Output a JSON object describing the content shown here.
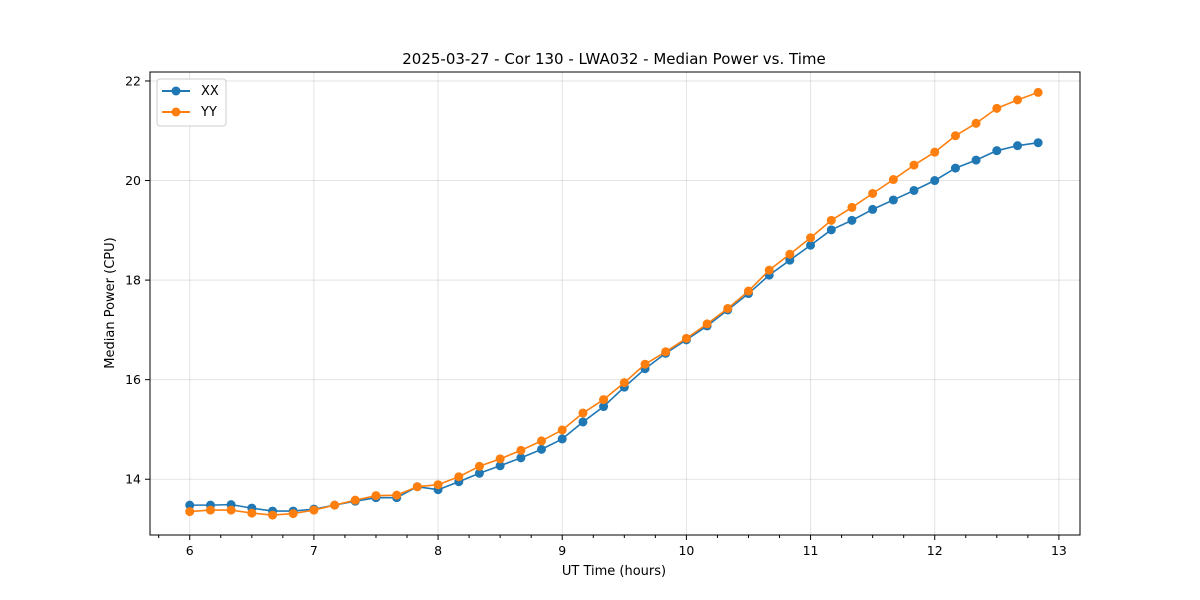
{
  "chart_data": {
    "type": "line",
    "title": "2025-03-27 - Cor 130 - LWA032 - Median Power vs. Time",
    "xlabel": "UT Time (hours)",
    "ylabel": "Median Power (CPU)",
    "xlim": [
      5.68,
      13.17
    ],
    "ylim": [
      12.88,
      22.18
    ],
    "xticks": [
      6,
      7,
      8,
      9,
      10,
      11,
      12,
      13
    ],
    "yticks": [
      14,
      16,
      18,
      20,
      22
    ],
    "grid": true,
    "legend_position": "top-left",
    "x": [
      6.0,
      6.167,
      6.333,
      6.5,
      6.667,
      6.833,
      7.0,
      7.167,
      7.333,
      7.5,
      7.667,
      7.833,
      8.0,
      8.167,
      8.333,
      8.5,
      8.667,
      8.833,
      9.0,
      9.167,
      9.333,
      9.5,
      9.667,
      9.833,
      10.0,
      10.167,
      10.333,
      10.5,
      10.667,
      10.833,
      11.0,
      11.167,
      11.333,
      11.5,
      11.667,
      11.833,
      12.0,
      12.167,
      12.333,
      12.5,
      12.667,
      12.833
    ],
    "series": [
      {
        "name": "XX",
        "color": "#1f77b4",
        "values": [
          13.48,
          13.48,
          13.49,
          13.42,
          13.36,
          13.36,
          13.4,
          13.48,
          13.56,
          13.63,
          13.63,
          13.85,
          13.79,
          13.95,
          14.12,
          14.27,
          14.43,
          14.6,
          14.81,
          15.15,
          15.46,
          15.85,
          16.22,
          16.53,
          16.8,
          17.08,
          17.4,
          17.73,
          18.1,
          18.4,
          18.7,
          19.01,
          19.2,
          19.42,
          19.61,
          19.8,
          20.0,
          20.25,
          20.41,
          20.6,
          20.7,
          20.76
        ]
      },
      {
        "name": "YY",
        "color": "#ff7f0e",
        "values": [
          13.35,
          13.38,
          13.38,
          13.32,
          13.28,
          13.31,
          13.38,
          13.48,
          13.58,
          13.67,
          13.68,
          13.85,
          13.89,
          14.05,
          14.26,
          14.41,
          14.58,
          14.77,
          14.99,
          15.33,
          15.6,
          15.94,
          16.31,
          16.56,
          16.83,
          17.12,
          17.43,
          17.78,
          18.2,
          18.52,
          18.85,
          19.2,
          19.46,
          19.74,
          20.02,
          20.31,
          20.57,
          20.9,
          21.15,
          21.45,
          21.62,
          21.77
        ]
      }
    ]
  }
}
